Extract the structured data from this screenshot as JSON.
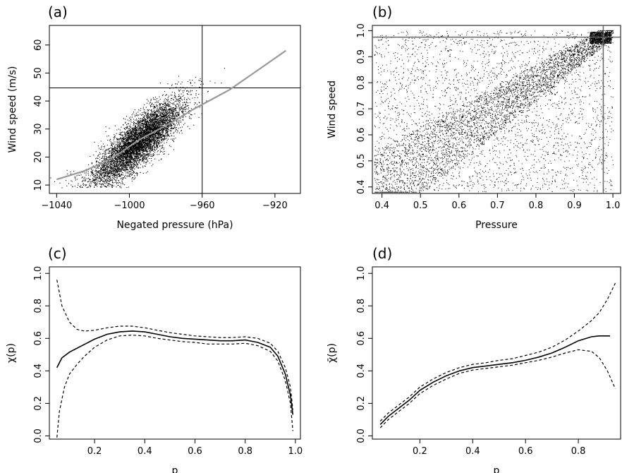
{
  "chart_data": [
    {
      "id": "a",
      "type": "scatter",
      "panel_label": "(a)",
      "xlabel": "Negated pressure (hPa)",
      "ylabel": "Wind speed (m/s)",
      "xlim": [
        -1044,
        -906
      ],
      "ylim": [
        7,
        67
      ],
      "xticks": [
        -1040,
        -1000,
        -960,
        -920
      ],
      "xtick_labels": [
        "−1040",
        "−1000",
        "−960",
        "−920"
      ],
      "yticks": [
        10,
        20,
        30,
        40,
        50,
        60
      ],
      "ytick_labels": [
        "10",
        "20",
        "30",
        "40",
        "50",
        "60"
      ],
      "threshold_x": -960,
      "threshold_y": 44.7,
      "point_color": "#000000",
      "fit_color": "#999999",
      "fit_line": {
        "x": [
          -1040,
          -1025,
          -1015,
          -1005,
          -995,
          -985,
          -975,
          -965,
          -955,
          -945,
          -935,
          -925,
          -914
        ],
        "y": [
          12,
          15,
          17.8,
          21.5,
          26,
          29.5,
          33,
          37,
          40.5,
          44,
          48.5,
          53,
          58
        ]
      },
      "cloud": {
        "x_center": -995,
        "y_center": 25.5,
        "x_sd": 12,
        "y_sd": 7.5,
        "correlation": 0.82,
        "n_points": 6000
      }
    },
    {
      "id": "b",
      "type": "scatter",
      "panel_label": "(b)",
      "xlabel": "Pressure",
      "ylabel": "Wind speed",
      "xlim": [
        0.375,
        1.02
      ],
      "ylim": [
        0.375,
        1.02
      ],
      "xticks": [
        0.4,
        0.5,
        0.6,
        0.7,
        0.8,
        0.9,
        1.0
      ],
      "xtick_labels": [
        "0.4",
        "0.5",
        "0.6",
        "0.7",
        "0.8",
        "0.9",
        "1.0"
      ],
      "yticks": [
        0.4,
        0.5,
        0.6,
        0.7,
        0.8,
        0.9,
        1.0
      ],
      "yticks_labels": [
        "0.4",
        "0.5",
        "0.6",
        "0.7",
        "0.8",
        "0.9",
        "1.0"
      ],
      "threshold_x": 0.975,
      "threshold_y": 0.975,
      "point_color": "#000000",
      "threshold_color": "#666666",
      "cloud": {
        "n_points": 6500,
        "dependence": 0.55
      }
    },
    {
      "id": "c",
      "type": "line",
      "panel_label": "(c)",
      "xlabel": "p",
      "ylabel": "χ(p)",
      "xlim": [
        0.02,
        1.02
      ],
      "ylim": [
        -0.02,
        1.04
      ],
      "xticks": [
        0.2,
        0.4,
        0.6,
        0.8,
        1.0
      ],
      "xtick_labels": [
        "0.2",
        "0.4",
        "0.6",
        "0.8",
        "1.0"
      ],
      "yticks": [
        0.0,
        0.2,
        0.4,
        0.6,
        0.8,
        1.0
      ],
      "ytick_labels": [
        "0.0",
        "0.2",
        "0.4",
        "0.6",
        "0.8",
        "1.0"
      ],
      "series": [
        {
          "style": "solid",
          "x": [
            0.05,
            0.07,
            0.1,
            0.15,
            0.2,
            0.25,
            0.3,
            0.35,
            0.4,
            0.45,
            0.5,
            0.55,
            0.6,
            0.65,
            0.7,
            0.75,
            0.8,
            0.85,
            0.9,
            0.93,
            0.96,
            0.98,
            0.99
          ],
          "y": [
            0.42,
            0.48,
            0.515,
            0.555,
            0.595,
            0.625,
            0.64,
            0.645,
            0.64,
            0.625,
            0.61,
            0.6,
            0.595,
            0.59,
            0.585,
            0.585,
            0.59,
            0.575,
            0.545,
            0.49,
            0.38,
            0.25,
            0.13
          ]
        },
        {
          "style": "dashed",
          "x": [
            0.05,
            0.07,
            0.1,
            0.13,
            0.16,
            0.2,
            0.25,
            0.3,
            0.35,
            0.4,
            0.45,
            0.5,
            0.55,
            0.6,
            0.65,
            0.7,
            0.75,
            0.8,
            0.85,
            0.9,
            0.93,
            0.96,
            0.98,
            0.99
          ],
          "y": [
            0.96,
            0.8,
            0.7,
            0.655,
            0.645,
            0.65,
            0.665,
            0.675,
            0.675,
            0.665,
            0.65,
            0.635,
            0.625,
            0.615,
            0.61,
            0.605,
            0.605,
            0.61,
            0.6,
            0.57,
            0.52,
            0.42,
            0.3,
            0.16
          ]
        },
        {
          "style": "dashed",
          "x": [
            0.05,
            0.06,
            0.08,
            0.1,
            0.13,
            0.16,
            0.2,
            0.25,
            0.3,
            0.35,
            0.4,
            0.45,
            0.5,
            0.55,
            0.6,
            0.65,
            0.7,
            0.75,
            0.8,
            0.85,
            0.9,
            0.93,
            0.96,
            0.98,
            0.99
          ],
          "y": [
            -0.01,
            0.15,
            0.3,
            0.38,
            0.44,
            0.49,
            0.545,
            0.59,
            0.615,
            0.62,
            0.615,
            0.6,
            0.59,
            0.58,
            0.575,
            0.565,
            0.565,
            0.565,
            0.57,
            0.555,
            0.52,
            0.46,
            0.34,
            0.2,
            0.03
          ]
        }
      ]
    },
    {
      "id": "d",
      "type": "line",
      "panel_label": "(d)",
      "xlabel": "p",
      "ylabel": "χ̄(p)",
      "xlim": [
        0.02,
        0.96
      ],
      "ylim": [
        -0.02,
        1.04
      ],
      "xticks": [
        0.2,
        0.4,
        0.6,
        0.8
      ],
      "xtick_labels": [
        "0.2",
        "0.4",
        "0.6",
        "0.8"
      ],
      "yticks": [
        0.0,
        0.2,
        0.4,
        0.6,
        0.8,
        1.0
      ],
      "ytick_labels": [
        "0.0",
        "0.2",
        "0.4",
        "0.6",
        "0.8",
        "1.0"
      ],
      "series": [
        {
          "style": "solid",
          "x": [
            0.05,
            0.08,
            0.12,
            0.16,
            0.2,
            0.25,
            0.3,
            0.35,
            0.4,
            0.45,
            0.5,
            0.55,
            0.6,
            0.65,
            0.7,
            0.75,
            0.8,
            0.85,
            0.88,
            0.92
          ],
          "y": [
            0.07,
            0.12,
            0.17,
            0.22,
            0.28,
            0.33,
            0.37,
            0.4,
            0.42,
            0.43,
            0.44,
            0.45,
            0.465,
            0.485,
            0.51,
            0.545,
            0.585,
            0.61,
            0.615,
            0.615
          ]
        },
        {
          "style": "dashed",
          "x": [
            0.05,
            0.08,
            0.12,
            0.16,
            0.2,
            0.25,
            0.3,
            0.35,
            0.4,
            0.45,
            0.5,
            0.55,
            0.6,
            0.65,
            0.7,
            0.75,
            0.8,
            0.85,
            0.88,
            0.91,
            0.94
          ],
          "y": [
            0.09,
            0.14,
            0.19,
            0.24,
            0.3,
            0.35,
            0.39,
            0.42,
            0.44,
            0.45,
            0.465,
            0.475,
            0.495,
            0.515,
            0.545,
            0.59,
            0.645,
            0.71,
            0.76,
            0.84,
            0.94
          ]
        },
        {
          "style": "dashed",
          "x": [
            0.05,
            0.08,
            0.12,
            0.16,
            0.2,
            0.25,
            0.3,
            0.35,
            0.4,
            0.45,
            0.5,
            0.55,
            0.6,
            0.65,
            0.7,
            0.75,
            0.8,
            0.85,
            0.88,
            0.91,
            0.94
          ],
          "y": [
            0.05,
            0.1,
            0.15,
            0.2,
            0.26,
            0.31,
            0.35,
            0.385,
            0.405,
            0.415,
            0.425,
            0.435,
            0.45,
            0.465,
            0.485,
            0.51,
            0.53,
            0.52,
            0.48,
            0.4,
            0.29
          ]
        }
      ]
    }
  ]
}
